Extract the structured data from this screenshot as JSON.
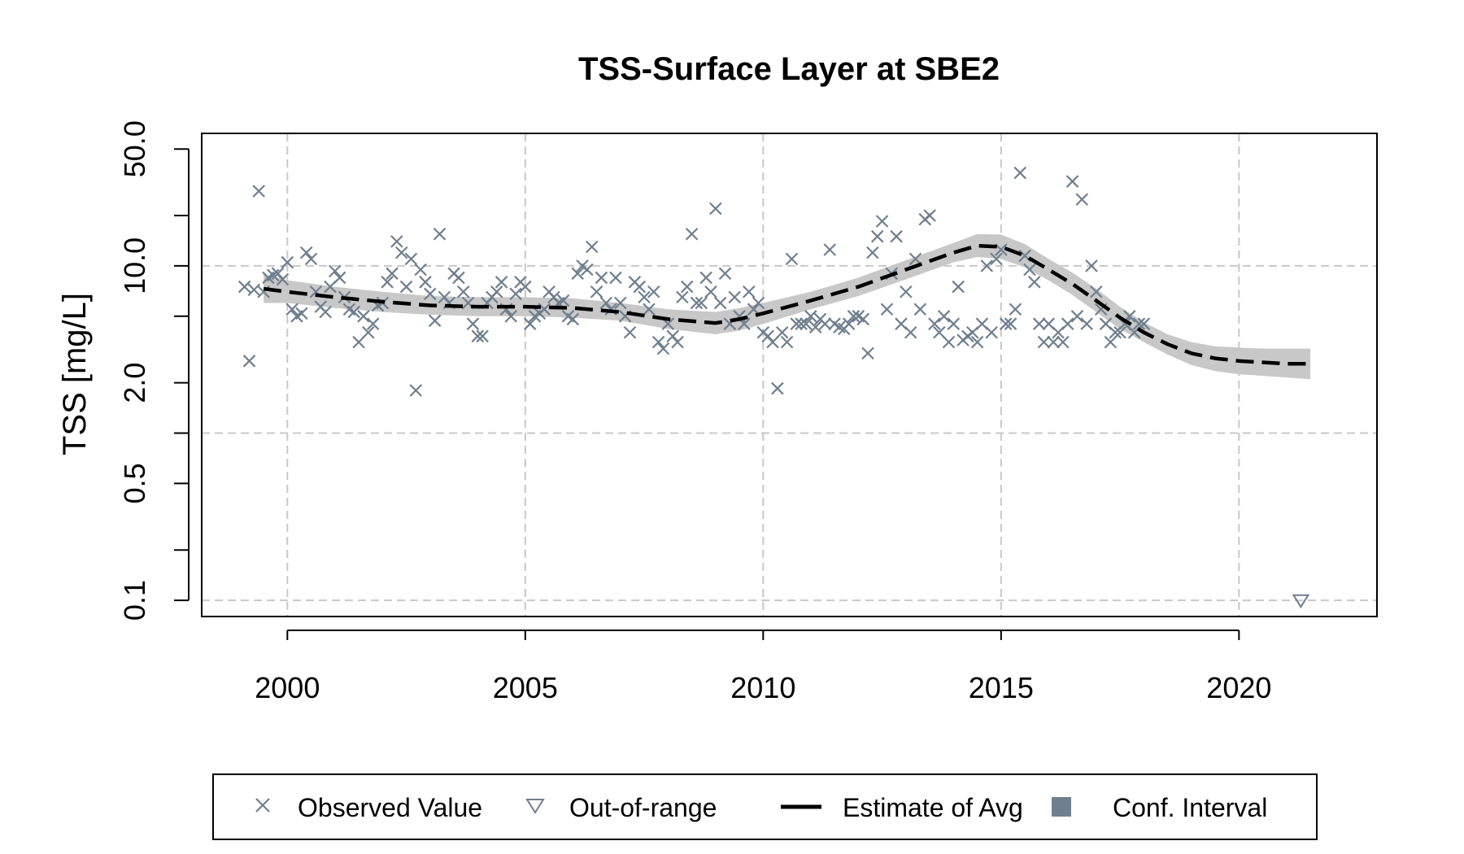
{
  "chart_data": {
    "type": "scatter",
    "title": "TSS-Surface Layer at SBE2",
    "xlabel": "",
    "ylabel": "TSS [mg/L]",
    "y_scale": "log",
    "xlim": [
      1998.2,
      2022.9
    ],
    "ylim": [
      0.08,
      62
    ],
    "x_ticks": [
      2000,
      2005,
      2010,
      2015,
      2020
    ],
    "y_ticks": [
      {
        "value": 0.1,
        "label": "0.1"
      },
      {
        "value": 0.2,
        "label": ""
      },
      {
        "value": 0.5,
        "label": "0.5"
      },
      {
        "value": 1.0,
        "label": ""
      },
      {
        "value": 2.0,
        "label": "2.0"
      },
      {
        "value": 5.0,
        "label": ""
      },
      {
        "value": 10.0,
        "label": "10.0"
      },
      {
        "value": 20.0,
        "label": ""
      },
      {
        "value": 50.0,
        "label": "50.0"
      }
    ],
    "x_grid": [
      2000,
      2005,
      2010,
      2015,
      2020
    ],
    "y_grid": [
      0.1,
      1.0,
      10.0
    ],
    "colors": {
      "observed": "#6F7F8E",
      "estimate": "#000000",
      "confidence_band": "#C8C8C8",
      "legend_conf_swatch": "#6F7F8E",
      "grid": "#C8C8C8"
    },
    "observed": {
      "name": "Observed Value",
      "points": [
        [
          1999.1,
          7.5
        ],
        [
          1999.2,
          2.7
        ],
        [
          1999.3,
          7.2
        ],
        [
          1999.4,
          28
        ],
        [
          1999.5,
          7.0
        ],
        [
          1999.6,
          8.5
        ],
        [
          1999.7,
          8.8
        ],
        [
          1999.8,
          9.0
        ],
        [
          1999.9,
          8.3
        ],
        [
          2000.0,
          10.5
        ],
        [
          2000.1,
          5.5
        ],
        [
          2000.2,
          5.0
        ],
        [
          2000.3,
          5.2
        ],
        [
          2000.4,
          12.0
        ],
        [
          2000.5,
          11.0
        ],
        [
          2000.6,
          7.0
        ],
        [
          2000.7,
          5.7
        ],
        [
          2000.8,
          5.3
        ],
        [
          2000.9,
          7.5
        ],
        [
          2001.0,
          9.3
        ],
        [
          2001.1,
          8.5
        ],
        [
          2001.2,
          6.5
        ],
        [
          2001.3,
          5.5
        ],
        [
          2001.4,
          5.3
        ],
        [
          2001.5,
          3.5
        ],
        [
          2001.6,
          5.0
        ],
        [
          2001.7,
          4.0
        ],
        [
          2001.8,
          4.5
        ],
        [
          2001.9,
          5.8
        ],
        [
          2002.0,
          6.0
        ],
        [
          2002.1,
          8.0
        ],
        [
          2002.2,
          9.0
        ],
        [
          2002.3,
          14.0
        ],
        [
          2002.4,
          12.0
        ],
        [
          2002.5,
          7.5
        ],
        [
          2002.6,
          11.0
        ],
        [
          2002.7,
          1.8
        ],
        [
          2002.8,
          9.5
        ],
        [
          2002.9,
          8.0
        ],
        [
          2003.0,
          6.8
        ],
        [
          2003.1,
          4.7
        ],
        [
          2003.2,
          15.5
        ],
        [
          2003.3,
          6.5
        ],
        [
          2003.4,
          6.0
        ],
        [
          2003.5,
          9.0
        ],
        [
          2003.6,
          8.5
        ],
        [
          2003.7,
          7.0
        ],
        [
          2003.8,
          6.0
        ],
        [
          2003.9,
          4.5
        ],
        [
          2004.0,
          3.8
        ],
        [
          2004.1,
          3.8
        ],
        [
          2004.2,
          6.0
        ],
        [
          2004.3,
          6.5
        ],
        [
          2004.4,
          7.0
        ],
        [
          2004.5,
          8.0
        ],
        [
          2004.6,
          5.5
        ],
        [
          2004.7,
          5.0
        ],
        [
          2004.8,
          6.8
        ],
        [
          2004.9,
          8.0
        ],
        [
          2005.0,
          7.5
        ],
        [
          2005.1,
          4.5
        ],
        [
          2005.2,
          5.0
        ],
        [
          2005.3,
          5.2
        ],
        [
          2005.4,
          5.5
        ],
        [
          2005.5,
          7.0
        ],
        [
          2005.6,
          6.5
        ],
        [
          2005.7,
          6.0
        ],
        [
          2005.8,
          6.2
        ],
        [
          2005.9,
          5.0
        ],
        [
          2006.0,
          4.8
        ],
        [
          2006.1,
          9.0
        ],
        [
          2006.2,
          10.0
        ],
        [
          2006.3,
          9.5
        ],
        [
          2006.4,
          13.0
        ],
        [
          2006.5,
          7.0
        ],
        [
          2006.6,
          8.5
        ],
        [
          2006.7,
          6.0
        ],
        [
          2006.8,
          5.5
        ],
        [
          2006.9,
          8.5
        ],
        [
          2007.0,
          6.0
        ],
        [
          2007.1,
          5.0
        ],
        [
          2007.2,
          4.0
        ],
        [
          2007.3,
          8.0
        ],
        [
          2007.4,
          7.5
        ],
        [
          2007.5,
          6.5
        ],
        [
          2007.6,
          5.5
        ],
        [
          2007.7,
          7.0
        ],
        [
          2007.8,
          3.5
        ],
        [
          2007.9,
          3.2
        ],
        [
          2008.0,
          4.5
        ],
        [
          2008.1,
          3.8
        ],
        [
          2008.2,
          3.5
        ],
        [
          2008.3,
          6.5
        ],
        [
          2008.4,
          7.5
        ],
        [
          2008.5,
          15.5
        ],
        [
          2008.6,
          6.0
        ],
        [
          2008.7,
          6.0
        ],
        [
          2008.8,
          8.5
        ],
        [
          2008.9,
          7.0
        ],
        [
          2009.0,
          22.0
        ],
        [
          2009.1,
          6.0
        ],
        [
          2009.2,
          9.0
        ],
        [
          2009.3,
          4.5
        ],
        [
          2009.4,
          6.5
        ],
        [
          2009.5,
          5.0
        ],
        [
          2009.6,
          4.5
        ],
        [
          2009.7,
          7.0
        ],
        [
          2009.8,
          5.5
        ],
        [
          2009.9,
          6.0
        ],
        [
          2010.0,
          4.0
        ],
        [
          2010.1,
          3.8
        ],
        [
          2010.2,
          3.5
        ],
        [
          2010.3,
          1.85
        ],
        [
          2010.4,
          4.0
        ],
        [
          2010.5,
          3.5
        ],
        [
          2010.6,
          11.0
        ],
        [
          2010.7,
          4.5
        ],
        [
          2010.8,
          4.5
        ],
        [
          2010.9,
          4.5
        ],
        [
          2011.0,
          5.0
        ],
        [
          2011.1,
          4.3
        ],
        [
          2011.2,
          4.8
        ],
        [
          2011.3,
          4.5
        ],
        [
          2011.4,
          12.5
        ],
        [
          2011.5,
          4.5
        ],
        [
          2011.6,
          4.3
        ],
        [
          2011.7,
          4.2
        ],
        [
          2011.8,
          4.5
        ],
        [
          2011.9,
          5.0
        ],
        [
          2012.0,
          5.0
        ],
        [
          2012.1,
          4.8
        ],
        [
          2012.2,
          3.0
        ],
        [
          2012.3,
          12.0
        ],
        [
          2012.4,
          15.0
        ],
        [
          2012.5,
          18.5
        ],
        [
          2012.6,
          5.5
        ],
        [
          2012.7,
          9.0
        ],
        [
          2012.8,
          15.0
        ],
        [
          2012.9,
          4.5
        ],
        [
          2013.0,
          7.0
        ],
        [
          2013.1,
          4.0
        ],
        [
          2013.2,
          11.0
        ],
        [
          2013.3,
          5.5
        ],
        [
          2013.4,
          19.0
        ],
        [
          2013.5,
          20.0
        ],
        [
          2013.6,
          4.5
        ],
        [
          2013.7,
          4.0
        ],
        [
          2013.8,
          5.0
        ],
        [
          2013.9,
          3.5
        ],
        [
          2014.0,
          4.5
        ],
        [
          2014.1,
          7.5
        ],
        [
          2014.2,
          3.6
        ],
        [
          2014.3,
          3.8
        ],
        [
          2014.4,
          4.0
        ],
        [
          2014.5,
          3.5
        ],
        [
          2014.6,
          4.5
        ],
        [
          2014.7,
          10.0
        ],
        [
          2014.8,
          4.0
        ],
        [
          2014.9,
          11.0
        ],
        [
          2015.0,
          12.5
        ],
        [
          2015.1,
          4.5
        ],
        [
          2015.2,
          4.5
        ],
        [
          2015.3,
          5.5
        ],
        [
          2015.4,
          36.0
        ],
        [
          2015.5,
          11.5
        ],
        [
          2015.6,
          9.5
        ],
        [
          2015.7,
          8.0
        ],
        [
          2015.8,
          4.5
        ],
        [
          2015.9,
          3.5
        ],
        [
          2016.0,
          4.5
        ],
        [
          2016.1,
          3.5
        ],
        [
          2016.2,
          4.0
        ],
        [
          2016.3,
          3.5
        ],
        [
          2016.4,
          4.5
        ],
        [
          2016.5,
          32.0
        ],
        [
          2016.6,
          5.0
        ],
        [
          2016.7,
          25.0
        ],
        [
          2016.8,
          4.5
        ],
        [
          2016.9,
          10.0
        ],
        [
          2017.0,
          7.0
        ],
        [
          2017.1,
          5.5
        ],
        [
          2017.2,
          4.5
        ],
        [
          2017.3,
          3.5
        ],
        [
          2017.4,
          4.0
        ],
        [
          2017.5,
          4.0
        ],
        [
          2017.6,
          4.5
        ],
        [
          2017.7,
          5.0
        ],
        [
          2017.8,
          4.0
        ],
        [
          2017.9,
          4.5
        ],
        [
          2018.0,
          4.5
        ]
      ]
    },
    "out_of_range": {
      "name": "Out-of-range",
      "points": [
        [
          2021.3,
          0.1
        ]
      ]
    },
    "estimate": {
      "name": "Estimate of Avg",
      "x": [
        1999.5,
        2000,
        2001,
        2002,
        2003,
        2004,
        2005,
        2006,
        2007,
        2008,
        2009,
        2009.5,
        2010,
        2011,
        2012,
        2013,
        2014,
        2014.5,
        2015,
        2015.5,
        2016,
        2016.5,
        2017,
        2017.5,
        2018,
        2018.5,
        2019,
        2019.5,
        2020,
        2020.5,
        2021,
        2021.5
      ],
      "y": [
        7.3,
        7.0,
        6.5,
        6.1,
        5.8,
        5.7,
        5.7,
        5.6,
        5.3,
        4.8,
        4.55,
        4.8,
        5.2,
        6.2,
        7.5,
        9.5,
        12.0,
        13.2,
        13.0,
        11.5,
        9.5,
        7.8,
        6.2,
        4.9,
        4.0,
        3.4,
        3.0,
        2.8,
        2.7,
        2.65,
        2.6,
        2.6
      ]
    },
    "confidence_band": {
      "name": "Conf. Interval",
      "lower": [
        6.0,
        6.0,
        5.6,
        5.3,
        5.1,
        5.0,
        5.0,
        4.9,
        4.7,
        4.2,
        3.9,
        4.1,
        4.5,
        5.5,
        6.6,
        8.3,
        10.5,
        11.3,
        11.0,
        9.8,
        8.2,
        6.7,
        5.3,
        4.2,
        3.5,
        2.95,
        2.55,
        2.35,
        2.25,
        2.2,
        2.15,
        2.1
      ],
      "upper": [
        8.9,
        8.2,
        7.5,
        7.0,
        6.6,
        6.5,
        6.5,
        6.4,
        6.0,
        5.5,
        5.3,
        5.6,
        6.0,
        7.0,
        8.5,
        10.8,
        13.7,
        15.5,
        15.4,
        13.5,
        11.0,
        9.1,
        7.3,
        5.7,
        4.6,
        3.9,
        3.5,
        3.3,
        3.25,
        3.2,
        3.2,
        3.2
      ]
    },
    "legend": {
      "position": "bottom",
      "items": [
        {
          "label": "Observed Value",
          "symbol": "cross"
        },
        {
          "label": "Out-of-range",
          "symbol": "triangle-down"
        },
        {
          "label": "Estimate of Avg",
          "symbol": "line"
        },
        {
          "label": "Conf. Interval",
          "symbol": "square"
        }
      ]
    }
  }
}
